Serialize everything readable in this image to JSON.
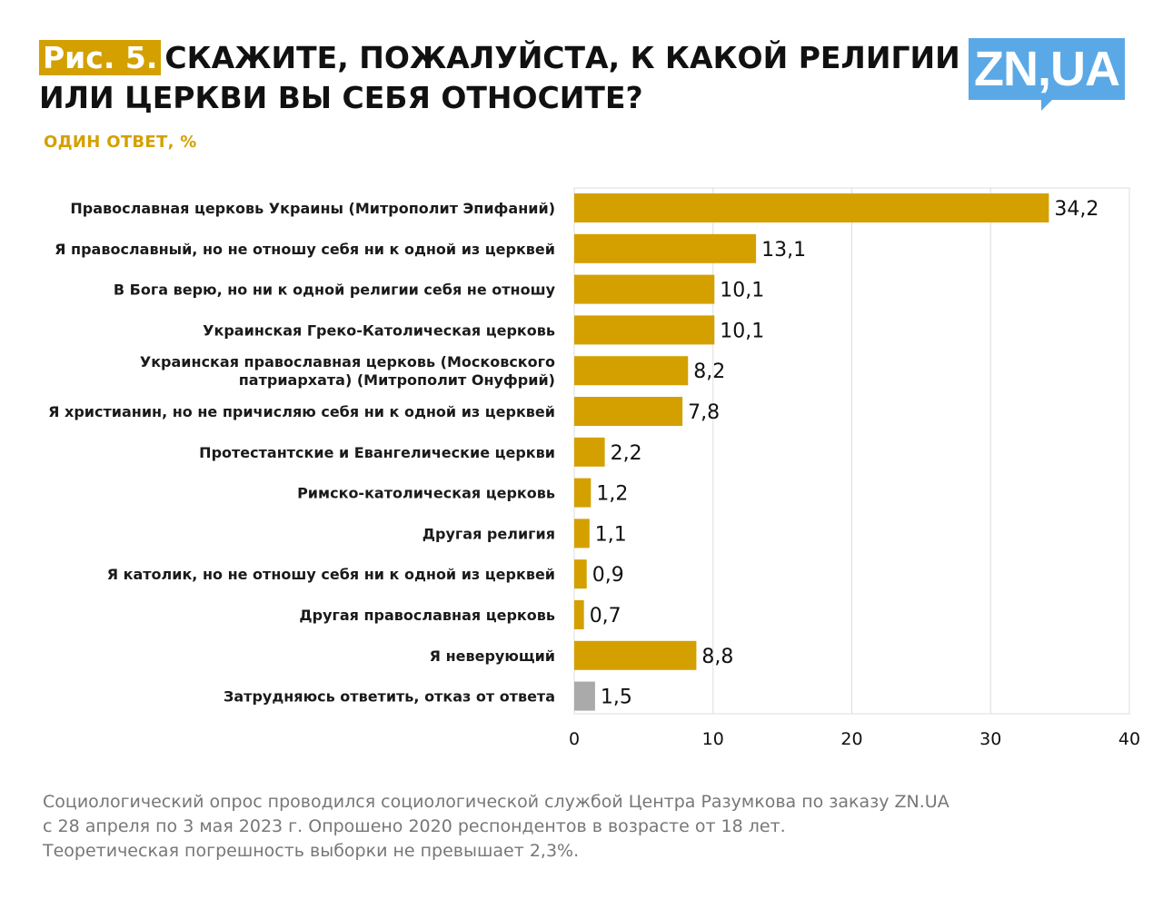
{
  "header": {
    "fig_label": "Рис. 5.",
    "title_line1": "СКАЖИТЕ, ПОЖАЛУЙСТА, К КАКОЙ РЕЛИГИИ",
    "title_line2": "ИЛИ ЦЕРКВИ ВЫ СЕБЯ ОТНОСИТЕ?",
    "subtitle": "ОДИН ОТВЕТ, %"
  },
  "logo": {
    "text": "ZN,UA",
    "color": "#5aa9e6"
  },
  "colors": {
    "accent": "#d4a000",
    "gray_bar": "#aaaaaa",
    "grid": "#dddddd"
  },
  "chart_data": {
    "type": "bar",
    "orientation": "horizontal",
    "title": "СКАЖИТЕ, ПОЖАЛУЙСТА, К КАКОЙ РЕЛИГИИ ИЛИ ЦЕРКВИ ВЫ СЕБЯ ОТНОСИТЕ?",
    "unit": "%",
    "categories": [
      [
        "Православная церковь Украины (Митрополит Эпифаний)"
      ],
      [
        "Я православный, но не отношу себя ни к одной из церквей"
      ],
      [
        "В Бога верю, но ни к одной религии себя не отношу"
      ],
      [
        "Украинская Греко-Католическая церковь"
      ],
      [
        "Украинская православная церковь (Московского",
        "патриархата) (Митрополит Онуфрий)"
      ],
      [
        "Я христианин, но не причисляю себя ни к одной из церквей"
      ],
      [
        "Протестантские и Евангелические церкви"
      ],
      [
        "Римско-католическая церковь"
      ],
      [
        "Другая религия"
      ],
      [
        "Я католик, но не отношу себя ни к одной из церквей"
      ],
      [
        "Другая православная церковь"
      ],
      [
        "Я неверующий"
      ],
      [
        "Затрудняюсь ответить, отказ от ответа"
      ]
    ],
    "values": [
      34.2,
      13.1,
      10.1,
      10.1,
      8.2,
      7.8,
      2.2,
      1.2,
      1.1,
      0.9,
      0.7,
      8.8,
      1.5
    ],
    "value_labels": [
      "34,2",
      "13,1",
      "10,1",
      "10,1",
      "8,2",
      "7,8",
      "2,2",
      "1,2",
      "1,1",
      "0,9",
      "0,7",
      "8,8",
      "1,5"
    ],
    "bar_colors": [
      "#d4a000",
      "#d4a000",
      "#d4a000",
      "#d4a000",
      "#d4a000",
      "#d4a000",
      "#d4a000",
      "#d4a000",
      "#d4a000",
      "#d4a000",
      "#d4a000",
      "#d4a000",
      "#aaaaaa"
    ],
    "xlim": [
      0,
      40
    ],
    "xticks": [
      0,
      10,
      20,
      30,
      40
    ],
    "xtick_labels": [
      "0",
      "10",
      "20",
      "30",
      "40"
    ],
    "grid": true
  },
  "footnote": {
    "line1": "Социологический опрос проводился социологической службой Центра Разумкова по заказу ZN.UA",
    "line2": "с 28 апреля по 3 мая 2023 г. Опрошено 2020 респондентов в возрасте от 18 лет.",
    "line3": "Теоретическая погрешность выборки не превышает 2,3%."
  }
}
